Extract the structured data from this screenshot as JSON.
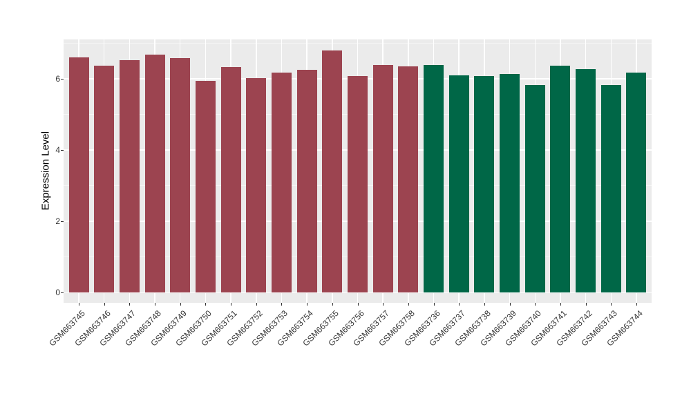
{
  "figure": {
    "background_color": "#ffffff",
    "panel_background_color": "#ebebeb",
    "grid_color": "#ffffff",
    "axis_text_color": "#333333",
    "axis_title_color": "#000000"
  },
  "chart_data": {
    "type": "bar",
    "title": "",
    "xlabel": "",
    "ylabel": "Expression Level",
    "ylim": [
      0,
      7.15
    ],
    "yticks": [
      0,
      2,
      4,
      6
    ],
    "yticks_minor": [
      1,
      3,
      5,
      7
    ],
    "grid": "on",
    "legend_position": "none",
    "categories": [
      "GSM663745",
      "GSM663746",
      "GSM663747",
      "GSM663748",
      "GSM663749",
      "GSM663750",
      "GSM663751",
      "GSM663752",
      "GSM663753",
      "GSM663754",
      "GSM663755",
      "GSM663756",
      "GSM663757",
      "GSM663758",
      "GSM663736",
      "GSM663737",
      "GSM663738",
      "GSM663739",
      "GSM663740",
      "GSM663741",
      "GSM663742",
      "GSM663743",
      "GSM663744"
    ],
    "values": [
      6.61,
      6.37,
      6.52,
      6.67,
      6.58,
      5.95,
      6.33,
      6.02,
      6.18,
      6.26,
      6.79,
      6.08,
      6.38,
      6.34,
      6.38,
      6.09,
      6.07,
      6.13,
      5.83,
      6.36,
      6.28,
      5.83,
      6.18
    ],
    "bar_colors": [
      "#9c4450",
      "#9c4450",
      "#9c4450",
      "#9c4450",
      "#9c4450",
      "#9c4450",
      "#9c4450",
      "#9c4450",
      "#9c4450",
      "#9c4450",
      "#9c4450",
      "#9c4450",
      "#9c4450",
      "#9c4450",
      "#006747",
      "#006747",
      "#006747",
      "#006747",
      "#006747",
      "#006747",
      "#006747",
      "#006747",
      "#006747"
    ],
    "group_colors": [
      "#9c4450",
      "#006747"
    ],
    "group_sizes": [
      14,
      9
    ]
  }
}
